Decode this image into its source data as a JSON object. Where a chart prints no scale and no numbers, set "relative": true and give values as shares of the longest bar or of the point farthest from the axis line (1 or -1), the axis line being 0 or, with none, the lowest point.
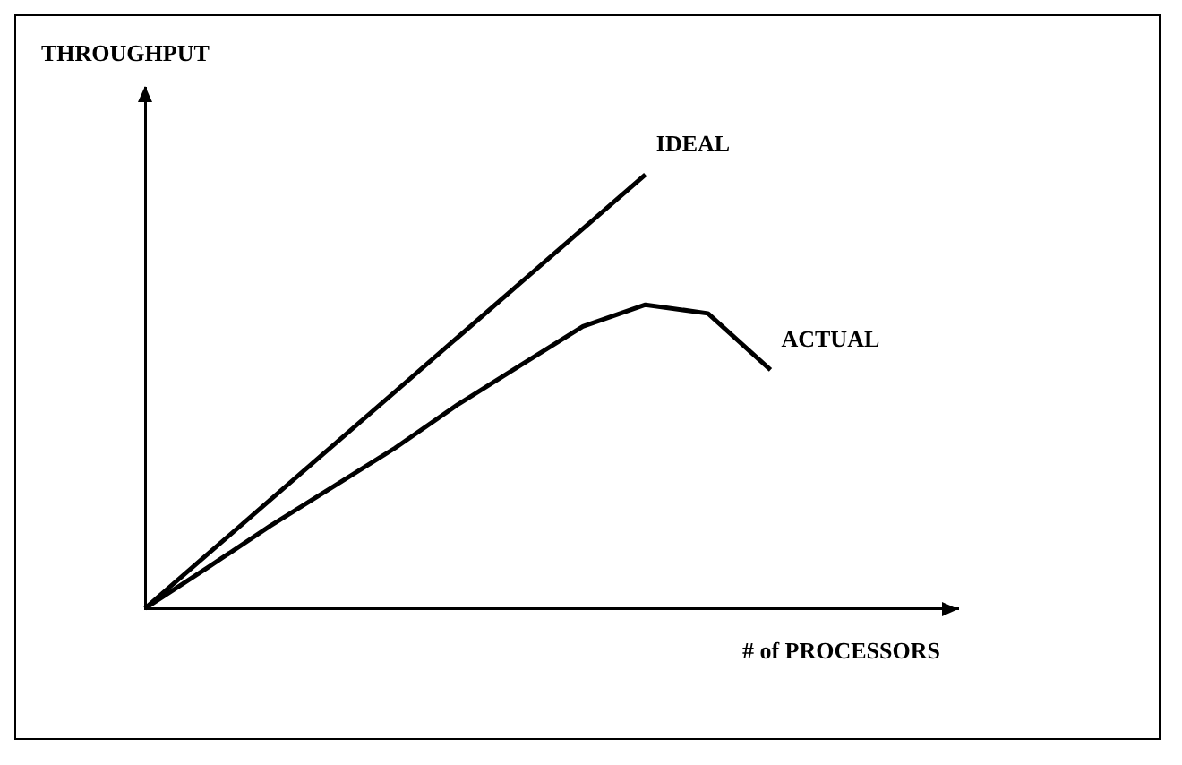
{
  "chart_data": {
    "type": "line",
    "relative": true,
    "xlabel": "# of PROCESSORS",
    "ylabel": "THROUGHPUT",
    "categories": [
      null,
      null,
      null,
      null,
      null,
      null,
      null,
      null,
      null,
      null,
      null,
      null,
      null,
      null
    ],
    "grid": false,
    "legend": false,
    "marker": "none",
    "line_style": "solid",
    "series": [
      {
        "name": "IDEAL",
        "color": "#000000",
        "values": [
          0,
          0.125,
          0.25,
          0.375,
          0.5,
          0.625,
          0.75,
          0.875,
          1,
          null,
          null,
          null,
          null,
          null
        ]
      },
      {
        "name": "ACTUAL",
        "color": "#000000",
        "values": [
          0,
          0.094,
          0.19,
          0.28,
          0.37,
          0.47,
          0.56,
          0.65,
          0.7,
          0.68,
          0.55,
          null,
          null,
          null
        ]
      }
    ]
  }
}
